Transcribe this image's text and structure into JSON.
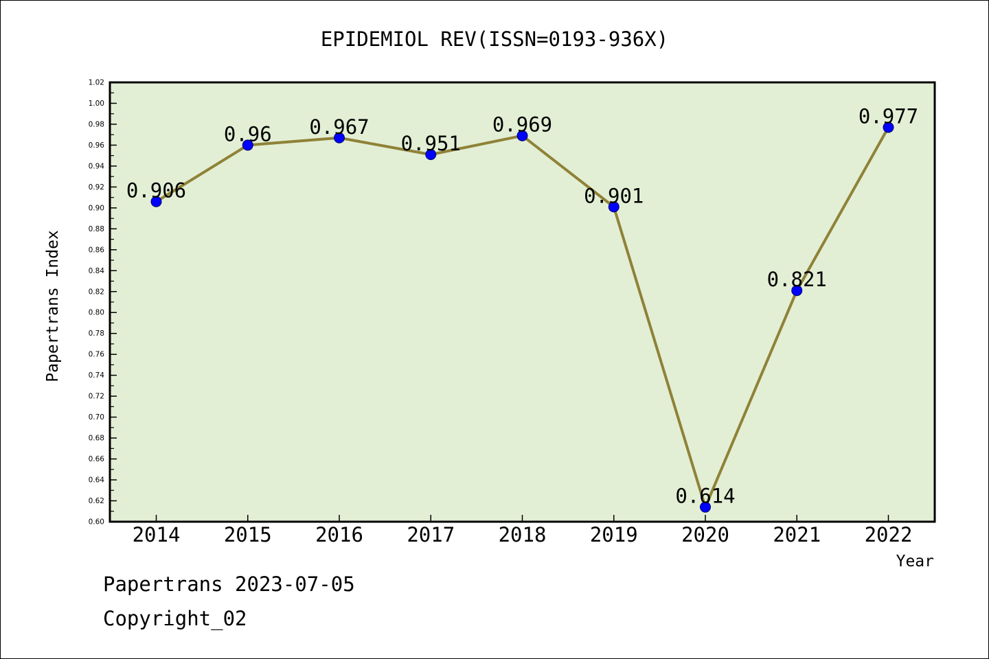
{
  "chart_data": {
    "type": "line",
    "title": "EPIDEMIOL REV(ISSN=0193-936X)",
    "xlabel": "Year",
    "ylabel": "Papertrans Index",
    "categories": [
      "2014",
      "2015",
      "2016",
      "2017",
      "2018",
      "2019",
      "2020",
      "2021",
      "2022"
    ],
    "series": [
      {
        "values": [
          0.906,
          0.96,
          0.967,
          0.951,
          0.969,
          0.901,
          0.614,
          0.821,
          0.977
        ]
      }
    ],
    "data_labels": [
      "0.906",
      "0.96",
      "0.967",
      "0.951",
      "0.969",
      "0.901",
      "0.614",
      "0.821",
      "0.977"
    ],
    "ylim": [
      0.6,
      1.02
    ],
    "y_ticks": [
      "0.60",
      "0.62",
      "0.64",
      "0.66",
      "0.68",
      "0.70",
      "0.72",
      "0.74",
      "0.76",
      "0.78",
      "0.80",
      "0.82",
      "0.84",
      "0.86",
      "0.88",
      "0.90",
      "0.92",
      "0.94",
      "0.96",
      "0.98",
      "1.00",
      "1.02"
    ],
    "grid": false,
    "legend": "none",
    "colors": {
      "plot_background": "#e2efd5",
      "line": "#8f8237",
      "marker": "#0000ff"
    }
  },
  "footer": {
    "date_text": "Papertrans 2023-07-05",
    "copyright_text": "Copyright_02"
  }
}
